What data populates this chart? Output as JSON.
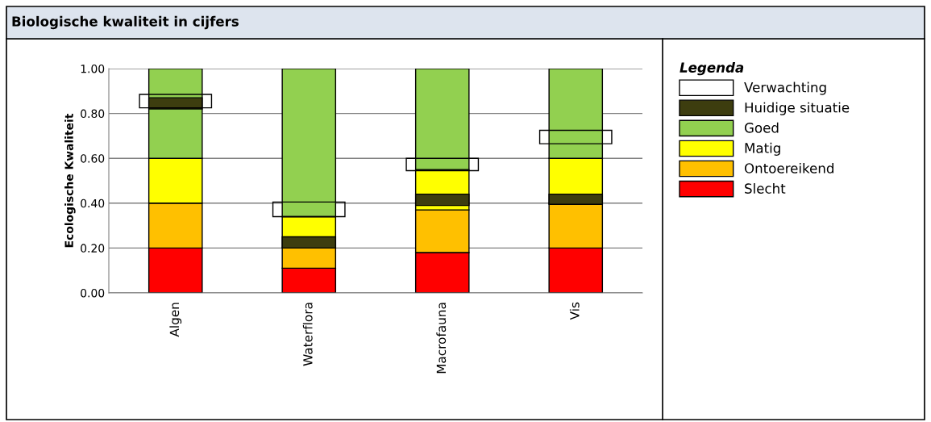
{
  "chart_data": {
    "type": "bar",
    "title": "Biologische kwaliteit in cijfers",
    "ylabel": "Ecologische Kwaliteit",
    "legend_title": "Legenda",
    "categories": [
      "Algen",
      "Waterflora",
      "Macrofauna",
      "Vis"
    ],
    "series": [
      {
        "name": "Slecht",
        "color": "#ff0000",
        "base": [
          0,
          0,
          0,
          0
        ],
        "values": [
          0.2,
          0.11,
          0.18,
          0.2
        ]
      },
      {
        "name": "Ontoereikend",
        "color": "#ffc000",
        "base": [
          0.2,
          0.11,
          0.18,
          0.2
        ],
        "values": [
          0.2,
          0.09,
          0.19,
          0.2
        ]
      },
      {
        "name": "Matig",
        "color": "#ffff00",
        "base": [
          0.4,
          0.2,
          0.37,
          0.4
        ],
        "values": [
          0.2,
          0.14,
          0.18,
          0.2
        ]
      },
      {
        "name": "Goed",
        "color": "#92d050",
        "base": [
          0.6,
          0.34,
          0.55,
          0.6
        ],
        "values": [
          0.4,
          0.66,
          0.45,
          0.4
        ]
      },
      {
        "name": "Huidige situatie",
        "color": "#3d3d0f",
        "base": [
          0.82,
          0.2,
          0.39,
          0.395
        ],
        "values": [
          0.05,
          0.05,
          0.05,
          0.045
        ]
      },
      {
        "name": "Verwachting",
        "color": "#000000",
        "line_style": "solid",
        "base": [
          0.825,
          0.34,
          0.545,
          0.665
        ],
        "values": [
          0.06,
          0.065,
          0.055,
          0.06
        ]
      }
    ],
    "ylim": [
      0,
      1
    ],
    "yticks": [
      {
        "value": 0,
        "label": "0.00"
      },
      {
        "value": 0.2,
        "label": "0.20"
      },
      {
        "value": 0.4,
        "label": "0.40"
      },
      {
        "value": 0.6,
        "label": "0.60"
      },
      {
        "value": 0.8,
        "label": "0.80"
      },
      {
        "value": 1,
        "label": "1.00"
      }
    ],
    "grid": "y",
    "legend": "right"
  }
}
